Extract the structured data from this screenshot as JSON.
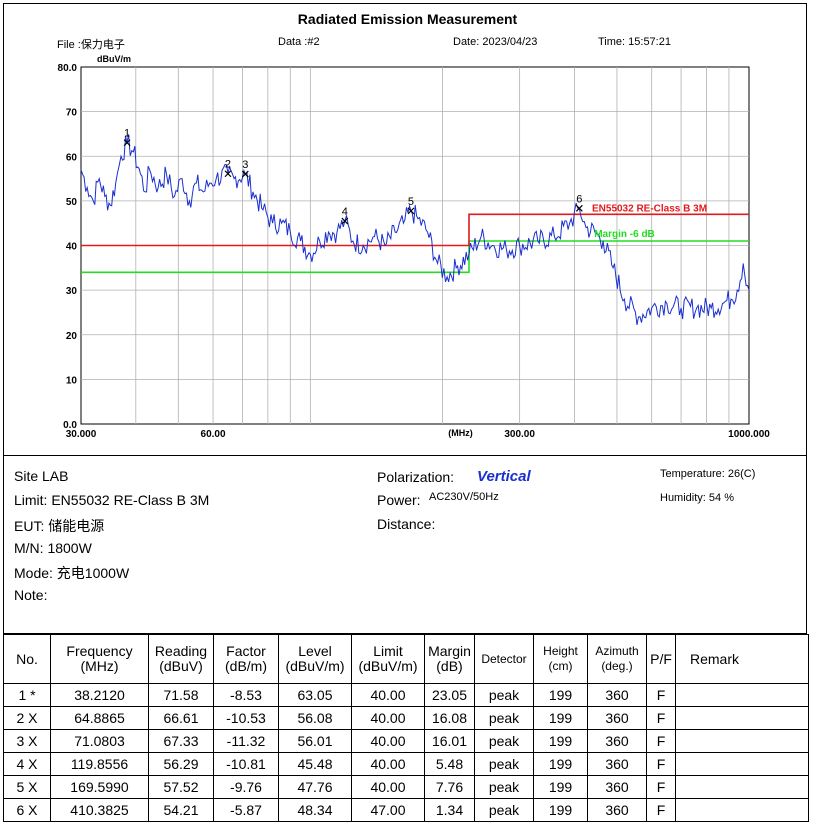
{
  "header": {
    "title": "Radiated Emission Measurement",
    "file": "File :保力电子",
    "data": "Data :#2",
    "date": "Date: 2023/04/23",
    "time": "Time: 15:57:21"
  },
  "chart_data": {
    "type": "line",
    "title": "Radiated Emission Measurement",
    "ylabel": "dBuV/m",
    "xlabel": "(MHz)",
    "xscale": "log",
    "xlim": [
      30,
      1000
    ],
    "ylim": [
      0,
      80
    ],
    "y_ticks": [
      0,
      10,
      20,
      30,
      40,
      50,
      60,
      70,
      80
    ],
    "y_tick_labels": [
      "0.0",
      "10",
      "20",
      "30",
      "40",
      "50",
      "60",
      "70",
      "80.0"
    ],
    "x_tick_labels": [
      {
        "value": 30,
        "label": "30.000"
      },
      {
        "value": 60,
        "label": "60.00"
      },
      {
        "value": 300,
        "label": "300.00"
      },
      {
        "value": 1000,
        "label": "1000.000"
      }
    ],
    "limit_line": {
      "name": "EN55032 RE-Class B 3M",
      "color": "#e31a1c",
      "points": [
        [
          30,
          40
        ],
        [
          230,
          40
        ],
        [
          230,
          47
        ],
        [
          1000,
          47
        ]
      ]
    },
    "margin_line": {
      "name": "Margin -6 dB",
      "color": "#22dd22",
      "points": [
        [
          30,
          34
        ],
        [
          230,
          34
        ],
        [
          230,
          41
        ],
        [
          1000,
          41
        ]
      ]
    },
    "series": [
      {
        "name": "Vertical",
        "color": "#1a2fcf",
        "points": [
          [
            30,
            57
          ],
          [
            31,
            53
          ],
          [
            32,
            50
          ],
          [
            33,
            55
          ],
          [
            34,
            51
          ],
          [
            35,
            49
          ],
          [
            36,
            54
          ],
          [
            37,
            60
          ],
          [
            38.2,
            63.05
          ],
          [
            39.5,
            61
          ],
          [
            41,
            56
          ],
          [
            42,
            52
          ],
          [
            43,
            57
          ],
          [
            45,
            53
          ],
          [
            47,
            56
          ],
          [
            49,
            51
          ],
          [
            51,
            55
          ],
          [
            53,
            50
          ],
          [
            55,
            54
          ],
          [
            57,
            52
          ],
          [
            59,
            54
          ],
          [
            61,
            55
          ],
          [
            64.89,
            56.08
          ],
          [
            67,
            55
          ],
          [
            71.08,
            56.01
          ],
          [
            74,
            52
          ],
          [
            78,
            48
          ],
          [
            82,
            45
          ],
          [
            86,
            45
          ],
          [
            90,
            43
          ],
          [
            95,
            41
          ],
          [
            100,
            38
          ],
          [
            105,
            41
          ],
          [
            110,
            43
          ],
          [
            115,
            43
          ],
          [
            119.86,
            45.48
          ],
          [
            125,
            41
          ],
          [
            132,
            40
          ],
          [
            140,
            42
          ],
          [
            148,
            40
          ],
          [
            156,
            43
          ],
          [
            163,
            45
          ],
          [
            169.6,
            47.76
          ],
          [
            176,
            46
          ],
          [
            185,
            43
          ],
          [
            195,
            36
          ],
          [
            205,
            33
          ],
          [
            215,
            35
          ],
          [
            230,
            38
          ],
          [
            245,
            42
          ],
          [
            260,
            40
          ],
          [
            280,
            39
          ],
          [
            300,
            40
          ],
          [
            330,
            41
          ],
          [
            360,
            42
          ],
          [
            390,
            45
          ],
          [
            410.38,
            48.34
          ],
          [
            425,
            44
          ],
          [
            445,
            43
          ],
          [
            465,
            41
          ],
          [
            490,
            35
          ],
          [
            520,
            28
          ],
          [
            560,
            24
          ],
          [
            600,
            26
          ],
          [
            650,
            27
          ],
          [
            700,
            26
          ],
          [
            760,
            26
          ],
          [
            820,
            26
          ],
          [
            870,
            27
          ],
          [
            910,
            28
          ],
          [
            940,
            30
          ],
          [
            970,
            36
          ],
          [
            1000,
            30
          ]
        ]
      }
    ],
    "markers": [
      {
        "label": "1",
        "freq": 38.212,
        "level": 63.05
      },
      {
        "label": "2",
        "freq": 64.8865,
        "level": 56.08
      },
      {
        "label": "3",
        "freq": 71.0803,
        "level": 56.01
      },
      {
        "label": "4",
        "freq": 119.8556,
        "level": 45.48
      },
      {
        "label": "5",
        "freq": 169.599,
        "level": 47.76
      },
      {
        "label": "6",
        "freq": 410.3825,
        "level": 48.34
      }
    ]
  },
  "info": {
    "site": "Site  LAB",
    "limit": "Limit:  EN55032 RE-Class B 3M",
    "eut": "EUT:  储能电源",
    "mn": "M/N:  1800W",
    "mode": "Mode:  充电1000W",
    "note": "Note:",
    "polarization_label": "Polarization:",
    "polarization_value": "Vertical",
    "power_label": "Power:",
    "power_value": "AC230V/50Hz",
    "distance": "Distance:",
    "temperature": "Temperature:     26(C)",
    "humidity": "Humidity:   54 %"
  },
  "table": {
    "headers": [
      "No.",
      "Frequency\n(MHz)",
      "Reading\n(dBuV)",
      "Factor\n(dB/m)",
      "Level\n(dBuV/m)",
      "Limit\n(dBuV/m)",
      "Margin\n(dB)",
      "Detector",
      "Height\n(cm)",
      "Azimuth\n(deg.)",
      "P/F",
      "Remark"
    ],
    "rows": [
      [
        "1 *",
        "38.2120",
        "71.58",
        "-8.53",
        "63.05",
        "40.00",
        "23.05",
        "peak",
        "199",
        "360",
        "F",
        ""
      ],
      [
        "2 X",
        "64.8865",
        "66.61",
        "-10.53",
        "56.08",
        "40.00",
        "16.08",
        "peak",
        "199",
        "360",
        "F",
        ""
      ],
      [
        "3 X",
        "71.0803",
        "67.33",
        "-11.32",
        "56.01",
        "40.00",
        "16.01",
        "peak",
        "199",
        "360",
        "F",
        ""
      ],
      [
        "4 X",
        "119.8556",
        "56.29",
        "-10.81",
        "45.48",
        "40.00",
        "5.48",
        "peak",
        "199",
        "360",
        "F",
        ""
      ],
      [
        "5 X",
        "169.5990",
        "57.52",
        "-9.76",
        "47.76",
        "40.00",
        "7.76",
        "peak",
        "199",
        "360",
        "F",
        ""
      ],
      [
        "6 X",
        "410.3825",
        "54.21",
        "-5.87",
        "48.34",
        "47.00",
        "1.34",
        "peak",
        "199",
        "360",
        "F",
        ""
      ]
    ]
  }
}
